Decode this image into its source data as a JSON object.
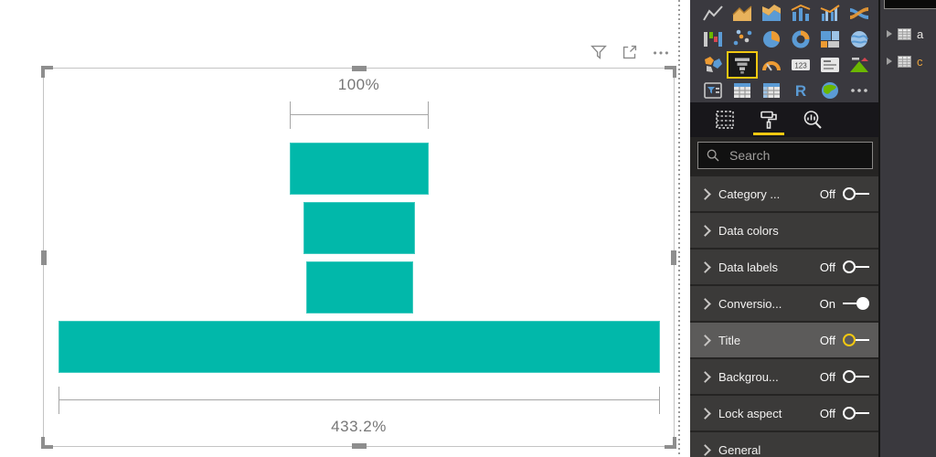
{
  "visual": {
    "header_icons": [
      "filter-icon",
      "focus-mode-icon",
      "more-options-icon"
    ]
  },
  "chart_data": {
    "type": "funnel",
    "orientation": "vertical-top-to-bottom",
    "bar_color": "#01B8AA",
    "segments_pct_of_first": [
      100,
      80.5,
      77,
      433.2
    ],
    "conversion_labels": {
      "top": "100%",
      "bottom": "433.2%"
    },
    "legend": "off",
    "data_labels": "off"
  },
  "vis_pane": {
    "icons": [
      "line-chart",
      "area-chart",
      "stacked-area-chart",
      "line-and-stacked-column-chart",
      "line-and-clustered-column-chart",
      "ribbon-chart",
      "waterfall-chart",
      "scatter-chart",
      "pie-chart",
      "donut-chart",
      "treemap",
      "map",
      "filled-map",
      "funnel-chart",
      "gauge",
      "card",
      "multi-row-card",
      "kpi",
      "slicer",
      "table",
      "matrix",
      "r-script-visual",
      "arcgis-map",
      "more-options"
    ],
    "selected_icon": "funnel-chart",
    "tabs": [
      {
        "id": "fields",
        "icon": "fields-grid-icon",
        "selected": false
      },
      {
        "id": "format",
        "icon": "paint-roller-icon",
        "selected": true
      },
      {
        "id": "analytics",
        "icon": "analytics-magnifier-icon",
        "selected": false
      }
    ]
  },
  "format_pane": {
    "search_placeholder": "Search",
    "accent_color": "#F2C811",
    "sections": [
      {
        "label": "Category ...",
        "toggle": "Off"
      },
      {
        "label": "Data colors",
        "toggle": null
      },
      {
        "label": "Data labels",
        "toggle": "Off"
      },
      {
        "label": "Conversio...",
        "toggle": "On"
      },
      {
        "label": "Title",
        "toggle": "Off",
        "highlighted": true,
        "toggle_accent": true
      },
      {
        "label": "Backgrou...",
        "toggle": "Off"
      },
      {
        "label": "Lock aspect",
        "toggle": "Off"
      },
      {
        "label": "General",
        "toggle": null
      }
    ]
  },
  "fields_pane": {
    "tables": [
      {
        "label": "a",
        "color": "#e8e6e3"
      },
      {
        "label": "c",
        "color": "#E8A33D"
      }
    ]
  }
}
